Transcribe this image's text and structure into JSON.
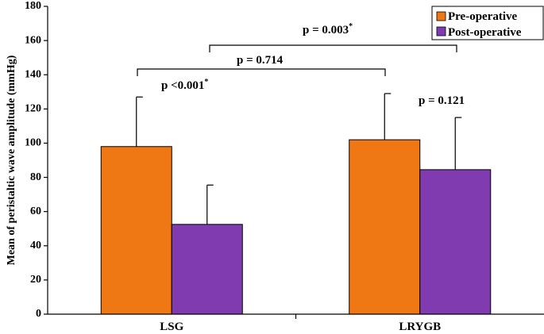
{
  "chart_data": {
    "type": "bar",
    "title": "",
    "xlabel": "",
    "ylabel": "Mean of peristaltic wave amplitude (mmHg)",
    "ylim": [
      0,
      180
    ],
    "yticks": [
      0,
      20,
      40,
      60,
      80,
      100,
      120,
      140,
      160,
      180
    ],
    "categories": [
      "LSG",
      "LRYGB"
    ],
    "series": [
      {
        "name": "Pre-operative",
        "color": "#F07814",
        "values": [
          98,
          102
        ],
        "error": [
          29,
          27
        ]
      },
      {
        "name": "Post-operative",
        "color": "#7F3BAF",
        "values": [
          52.5,
          84.5
        ],
        "error": [
          23,
          30.5
        ]
      }
    ],
    "legend": {
      "placement": "top-right"
    },
    "annotations": [
      {
        "label": "p <0.001",
        "sup": "*",
        "comparison": "LSG pre vs LSG post"
      },
      {
        "label": "p = 0.714",
        "sup": "",
        "comparison": "LSG pre vs LRYGB pre"
      },
      {
        "label": "p = 0.003",
        "sup": "*",
        "comparison": "LSG post vs LRYGB post"
      },
      {
        "label": "p = 0.121",
        "sup": "",
        "comparison": "LRYGB pre vs LRYGB post"
      }
    ]
  }
}
